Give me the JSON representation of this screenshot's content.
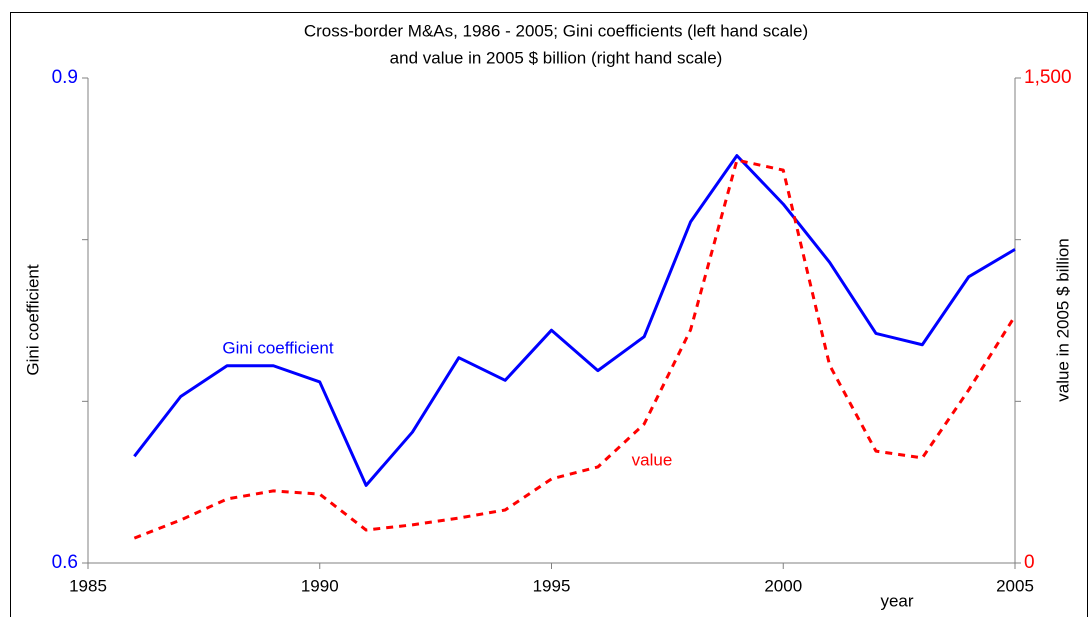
{
  "chart_data": {
    "type": "line",
    "title": [
      "Cross-border M&As, 1986 - 2005; Gini coefficients (left hand scale)",
      "and value in 2005 $ billion (right hand scale)"
    ],
    "ylabel": "Gini coefficient",
    "y2label": "value in 2005 $ billion",
    "xlabel": "year",
    "x": [
      1986,
      1987,
      1988,
      1989,
      1990,
      1991,
      1992,
      1993,
      1994,
      1995,
      1996,
      1997,
      1998,
      1999,
      2000,
      2001,
      2002,
      2003,
      2004,
      2005
    ],
    "xlim": [
      1985,
      2005
    ],
    "xticks": [
      1985,
      1990,
      1995,
      2000,
      2005
    ],
    "ylim": [
      0.6,
      0.9
    ],
    "yticks": [
      0.6,
      0.9
    ],
    "yminorticks": [
      0.7,
      0.8
    ],
    "y2lim": [
      0,
      1500
    ],
    "y2ticks": [
      0,
      {
        "value": 1500,
        "label": "1,500"
      }
    ],
    "y2minorticks": [
      500,
      1000
    ],
    "series": [
      {
        "name": "Gini coefficient",
        "color": "#0000ff",
        "dashed": false,
        "values": [
          0.666,
          0.703,
          0.722,
          0.722,
          0.712,
          0.648,
          0.681,
          0.727,
          0.713,
          0.744,
          0.719,
          0.74,
          0.811,
          0.852,
          0.822,
          0.786,
          0.742,
          0.735,
          0.777,
          0.794
        ]
      },
      {
        "name": "value",
        "color": "#ff0000",
        "dashed": true,
        "axis": "y2",
        "values": [
          77,
          133,
          198,
          223,
          213,
          102,
          118,
          139,
          164,
          260,
          297,
          430,
          721,
          1246,
          1215,
          612,
          346,
          325,
          535,
          764
        ]
      }
    ]
  }
}
